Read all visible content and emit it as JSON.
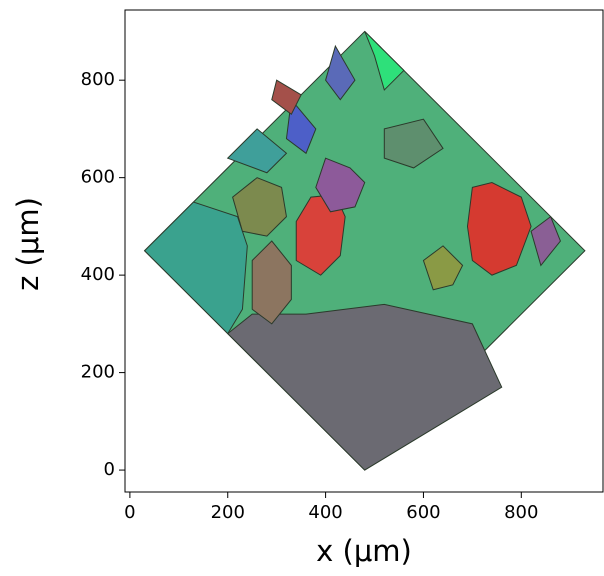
{
  "chart_data": {
    "type": "map",
    "xlabel": "x (μm)",
    "ylabel": "z (μm)",
    "xlim": [
      -10,
      967
    ],
    "ylim": [
      -45,
      944
    ],
    "xticks": [
      0,
      200,
      400,
      600,
      800
    ],
    "yticks": [
      0,
      200,
      400,
      600,
      800
    ],
    "edge_color": "#2b3a2b",
    "regions": [
      {
        "color": "#4fb07a",
        "points": [
          [
            30,
            450
          ],
          [
            480,
            900
          ],
          [
            930,
            450
          ],
          [
            480,
            0
          ]
        ]
      },
      {
        "color": "#6b6a72",
        "points": [
          [
            200,
            280
          ],
          [
            480,
            0
          ],
          [
            760,
            170
          ],
          [
            700,
            300
          ],
          [
            520,
            340
          ],
          [
            360,
            320
          ],
          [
            250,
            320
          ]
        ]
      },
      {
        "color": "#3aa28e",
        "points": [
          [
            30,
            450
          ],
          [
            130,
            550
          ],
          [
            220,
            520
          ],
          [
            240,
            460
          ],
          [
            230,
            330
          ],
          [
            200,
            280
          ]
        ]
      },
      {
        "color": "#d8423a",
        "points": [
          [
            340,
            510
          ],
          [
            370,
            560
          ],
          [
            420,
            565
          ],
          [
            440,
            520
          ],
          [
            430,
            440
          ],
          [
            390,
            400
          ],
          [
            340,
            430
          ]
        ]
      },
      {
        "color": "#d53a30",
        "points": [
          [
            700,
            580
          ],
          [
            740,
            590
          ],
          [
            800,
            560
          ],
          [
            820,
            500
          ],
          [
            790,
            420
          ],
          [
            740,
            400
          ],
          [
            700,
            430
          ],
          [
            690,
            500
          ]
        ]
      },
      {
        "color": "#7c8a4e",
        "points": [
          [
            210,
            560
          ],
          [
            260,
            600
          ],
          [
            310,
            580
          ],
          [
            320,
            520
          ],
          [
            280,
            480
          ],
          [
            230,
            490
          ]
        ]
      },
      {
        "color": "#8d5a9a",
        "points": [
          [
            400,
            640
          ],
          [
            450,
            620
          ],
          [
            480,
            590
          ],
          [
            460,
            540
          ],
          [
            410,
            530
          ],
          [
            380,
            580
          ]
        ]
      },
      {
        "color": "#4d5fc8",
        "points": [
          [
            330,
            760
          ],
          [
            380,
            700
          ],
          [
            360,
            650
          ],
          [
            320,
            680
          ]
        ]
      },
      {
        "color": "#5a6ab8",
        "points": [
          [
            420,
            870
          ],
          [
            460,
            800
          ],
          [
            430,
            760
          ],
          [
            400,
            800
          ]
        ]
      },
      {
        "color": "#8c7560",
        "points": [
          [
            250,
            430
          ],
          [
            290,
            470
          ],
          [
            330,
            420
          ],
          [
            330,
            350
          ],
          [
            290,
            300
          ],
          [
            250,
            330
          ]
        ]
      },
      {
        "color": "#8a9a45",
        "points": [
          [
            600,
            430
          ],
          [
            640,
            460
          ],
          [
            680,
            420
          ],
          [
            660,
            380
          ],
          [
            620,
            370
          ]
        ]
      },
      {
        "color": "#8a5f95",
        "points": [
          [
            820,
            490
          ],
          [
            860,
            520
          ],
          [
            880,
            470
          ],
          [
            840,
            420
          ]
        ]
      },
      {
        "color": "#2ee07a",
        "points": [
          [
            500,
            850
          ],
          [
            480,
            900
          ],
          [
            560,
            820
          ],
          [
            520,
            780
          ]
        ]
      },
      {
        "color": "#a4504a",
        "points": [
          [
            300,
            800
          ],
          [
            350,
            770
          ],
          [
            330,
            730
          ],
          [
            290,
            760
          ]
        ]
      },
      {
        "color": "#3f9f9a",
        "points": [
          [
            200,
            640
          ],
          [
            260,
            700
          ],
          [
            320,
            650
          ],
          [
            280,
            610
          ]
        ]
      },
      {
        "color": "#5e8f6e",
        "points": [
          [
            520,
            700
          ],
          [
            600,
            720
          ],
          [
            640,
            660
          ],
          [
            580,
            620
          ],
          [
            520,
            640
          ]
        ]
      }
    ]
  }
}
